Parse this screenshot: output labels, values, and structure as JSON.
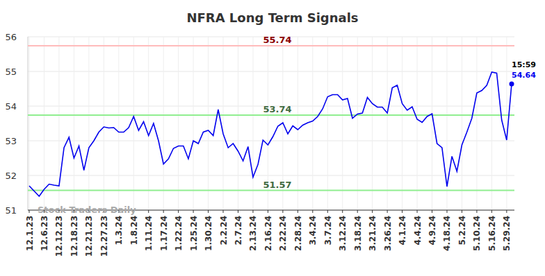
{
  "chart_data": {
    "type": "line",
    "title": "NFRA Long Term Signals",
    "categories": [
      "12.1.23",
      null,
      null,
      "12.6.23",
      null,
      null,
      "12.12.23",
      null,
      null,
      "12.18.23",
      null,
      null,
      "12.21.23",
      null,
      null,
      "12.27.23",
      null,
      null,
      "1.3.24",
      null,
      null,
      "1.8.24",
      null,
      null,
      "1.11.24",
      null,
      null,
      "1.17.24",
      null,
      null,
      "1.22.24",
      null,
      null,
      "1.25.24",
      null,
      null,
      "1.30.24",
      null,
      null,
      "2.2.24",
      null,
      null,
      "2.7.24",
      null,
      null,
      "2.13.24",
      null,
      null,
      "2.16.24",
      null,
      null,
      "2.22.24",
      null,
      null,
      "2.28.24",
      null,
      null,
      "3.4.24",
      null,
      null,
      "3.7.24",
      null,
      null,
      "3.12.24",
      null,
      null,
      "3.18.24",
      null,
      null,
      "3.21.24",
      null,
      null,
      "3.26.24",
      null,
      null,
      "4.1.24",
      null,
      null,
      "4.4.24",
      null,
      null,
      "4.9.24",
      null,
      null,
      "4.18.24",
      null,
      null,
      "5.2.24",
      null,
      null,
      "5.10.24",
      null,
      null,
      "5.16.24",
      null,
      null,
      "5.29.24",
      null
    ],
    "series": [
      {
        "name": "NFRA",
        "color": "#0000ee",
        "values": [
          51.7,
          51.55,
          51.4,
          51.6,
          51.75,
          51.72,
          51.7,
          52.8,
          53.1,
          52.5,
          52.85,
          52.15,
          52.8,
          53.0,
          53.25,
          53.4,
          53.37,
          53.38,
          53.25,
          53.25,
          53.38,
          53.7,
          53.3,
          53.55,
          53.15,
          53.5,
          53.0,
          52.33,
          52.48,
          52.78,
          52.85,
          52.85,
          52.48,
          53.0,
          52.92,
          53.25,
          53.3,
          53.15,
          53.9,
          53.2,
          52.8,
          52.92,
          52.7,
          52.42,
          52.83,
          51.95,
          52.32,
          53.02,
          52.88,
          53.12,
          53.42,
          53.52,
          53.2,
          53.43,
          53.32,
          53.45,
          53.52,
          53.57,
          53.7,
          53.92,
          54.27,
          54.33,
          54.33,
          54.18,
          54.22,
          53.65,
          53.77,
          53.8,
          54.25,
          54.07,
          53.97,
          53.97,
          53.8,
          54.53,
          54.6,
          54.07,
          53.88,
          53.98,
          53.62,
          53.53,
          53.7,
          53.78,
          52.92,
          52.8,
          51.68,
          52.55,
          52.12,
          52.88,
          53.25,
          53.65,
          54.38,
          54.45,
          54.6,
          54.98,
          54.95,
          53.6,
          53.02,
          54.64
        ]
      }
    ],
    "ylim": [
      51,
      56
    ],
    "yticks": [
      51,
      52,
      53,
      54,
      55,
      56
    ],
    "grid": true,
    "levels": [
      {
        "value": 55.74,
        "color": "#ffbbbb"
      },
      {
        "value": 53.74,
        "color": "#90ee90"
      },
      {
        "value": 51.57,
        "color": "#90ee90"
      }
    ],
    "last_time": "15:59",
    "watermark": "Stock Traders Daily"
  }
}
